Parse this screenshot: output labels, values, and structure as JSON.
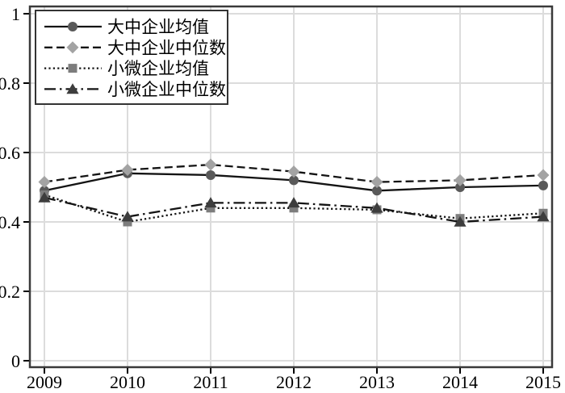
{
  "figure": {
    "background": "#ffffff",
    "frame_color": "#3a3a3a",
    "axis_tick_color": "#000000",
    "grid_color": "#dcdcdc",
    "legend_border_color": "#333333",
    "legend_background": "#ffffff"
  },
  "chart_data": {
    "type": "line",
    "x": [
      2009,
      2010,
      2011,
      2012,
      2013,
      2014,
      2015
    ],
    "xtick_labels": [
      "2009",
      "2010",
      "2011",
      "2012",
      "2013",
      "2014",
      "2015"
    ],
    "yticks": [
      0,
      0.2,
      0.4,
      0.6,
      0.8,
      1
    ],
    "ytick_labels": [
      "0",
      "0.2",
      "0.4",
      "0.6",
      "0.8",
      "1"
    ],
    "ylim": [
      0,
      1
    ],
    "xlabel": "",
    "ylabel": "",
    "title": "",
    "grid": true,
    "legend_position": "top-left",
    "series": [
      {
        "id": "large-medium-mean",
        "name": "大中企业均值",
        "marker": "circle",
        "line_style": "solid",
        "line_color": "#141414",
        "marker_color": "#595959",
        "values": [
          0.49,
          0.54,
          0.535,
          0.52,
          0.49,
          0.5,
          0.505
        ]
      },
      {
        "id": "large-medium-median",
        "name": "大中企业中位数",
        "marker": "diamond",
        "line_style": "dashed",
        "line_color": "#141414",
        "marker_color": "#a3a3a3",
        "values": [
          0.515,
          0.55,
          0.565,
          0.545,
          0.515,
          0.52,
          0.535
        ]
      },
      {
        "id": "small-micro-mean",
        "name": "小微企业均值",
        "marker": "square",
        "line_style": "dotted",
        "line_color": "#141414",
        "marker_color": "#7d7d7d",
        "values": [
          0.478,
          0.4,
          0.44,
          0.44,
          0.435,
          0.41,
          0.425
        ]
      },
      {
        "id": "small-micro-median",
        "name": "小微企业中位数",
        "marker": "triangle",
        "line_style": "dashdot",
        "line_color": "#141414",
        "marker_color": "#3d3d3d",
        "values": [
          0.47,
          0.415,
          0.455,
          0.455,
          0.44,
          0.4,
          0.415
        ]
      }
    ]
  }
}
